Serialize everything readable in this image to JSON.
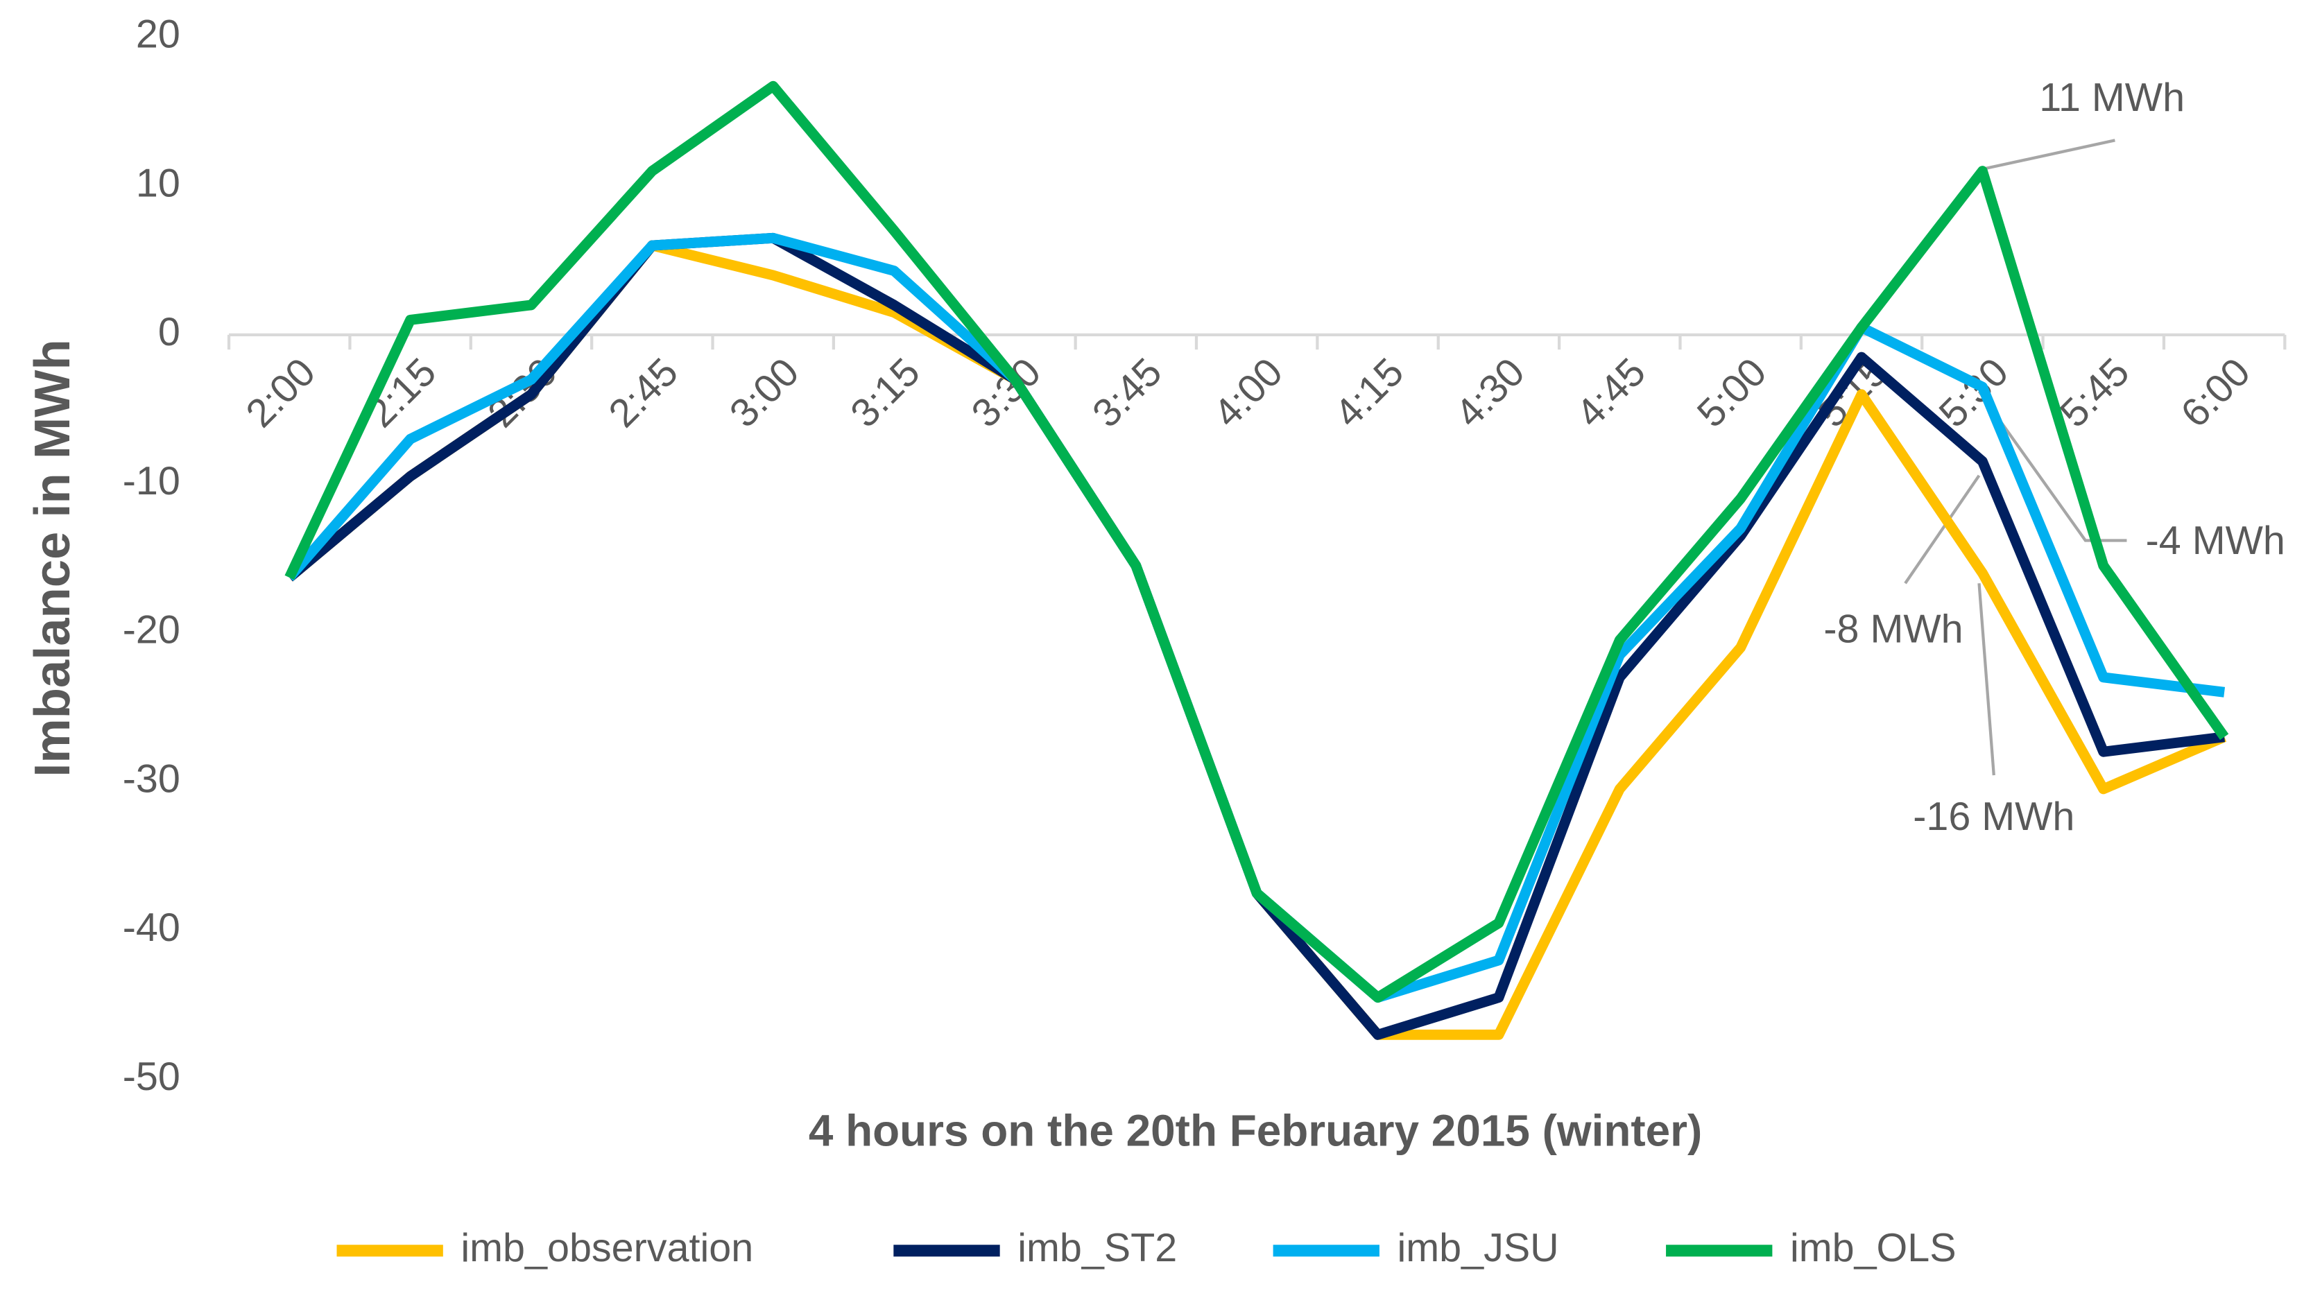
{
  "chart_data": {
    "type": "line",
    "xlabel": "4 hours on the 20th February 2015 (winter)",
    "ylabel": "Imbalance in MWh",
    "categories": [
      "2:00",
      "2:15",
      "2:30",
      "2:45",
      "3:00",
      "3:15",
      "3:30",
      "3:45",
      "4:00",
      "4:15",
      "4:30",
      "4:45",
      "5:00",
      "5:15",
      "5:30",
      "5:45",
      "6:00"
    ],
    "series": [
      {
        "name": "imb_observation",
        "color": "#FFC000",
        "values": [
          -16.3,
          -9.5,
          -4,
          6,
          4,
          1.5,
          -3,
          -15.5,
          -37.5,
          -47,
          -47,
          -30.5,
          -21,
          -4,
          -16,
          -30.5,
          -27
        ]
      },
      {
        "name": "imb_ST2",
        "color": "#002060",
        "values": [
          -16.3,
          -9.5,
          -4,
          6,
          6.5,
          2,
          -3,
          -15.5,
          -37.5,
          -47,
          -44.5,
          -23,
          -13.5,
          -1.5,
          -8.5,
          -28,
          -27
        ]
      },
      {
        "name": "imb_JSU",
        "color": "#00B0F0",
        "values": [
          -16.3,
          -7,
          -3,
          6,
          6.5,
          4.3,
          -3,
          -15.5,
          -37.5,
          -44.5,
          -42,
          -21.5,
          -13,
          0.5,
          -3.5,
          -23,
          -24
        ]
      },
      {
        "name": "imb_OLS",
        "color": "#00B050",
        "values": [
          -16.3,
          1,
          2,
          11,
          16.7,
          7,
          -3,
          -15.5,
          -37.5,
          -44.5,
          -39.5,
          -20.5,
          -11,
          0.5,
          11,
          -15.5,
          -27
        ]
      }
    ],
    "ylim": [
      -50,
      20
    ],
    "yticks": [
      -50,
      -40,
      -30,
      -20,
      -10,
      0,
      10,
      20
    ],
    "legend": "bottom",
    "annotations": [
      "11 MWh",
      "-4 MWh",
      "-8 MWh",
      "-16 MWh"
    ]
  }
}
